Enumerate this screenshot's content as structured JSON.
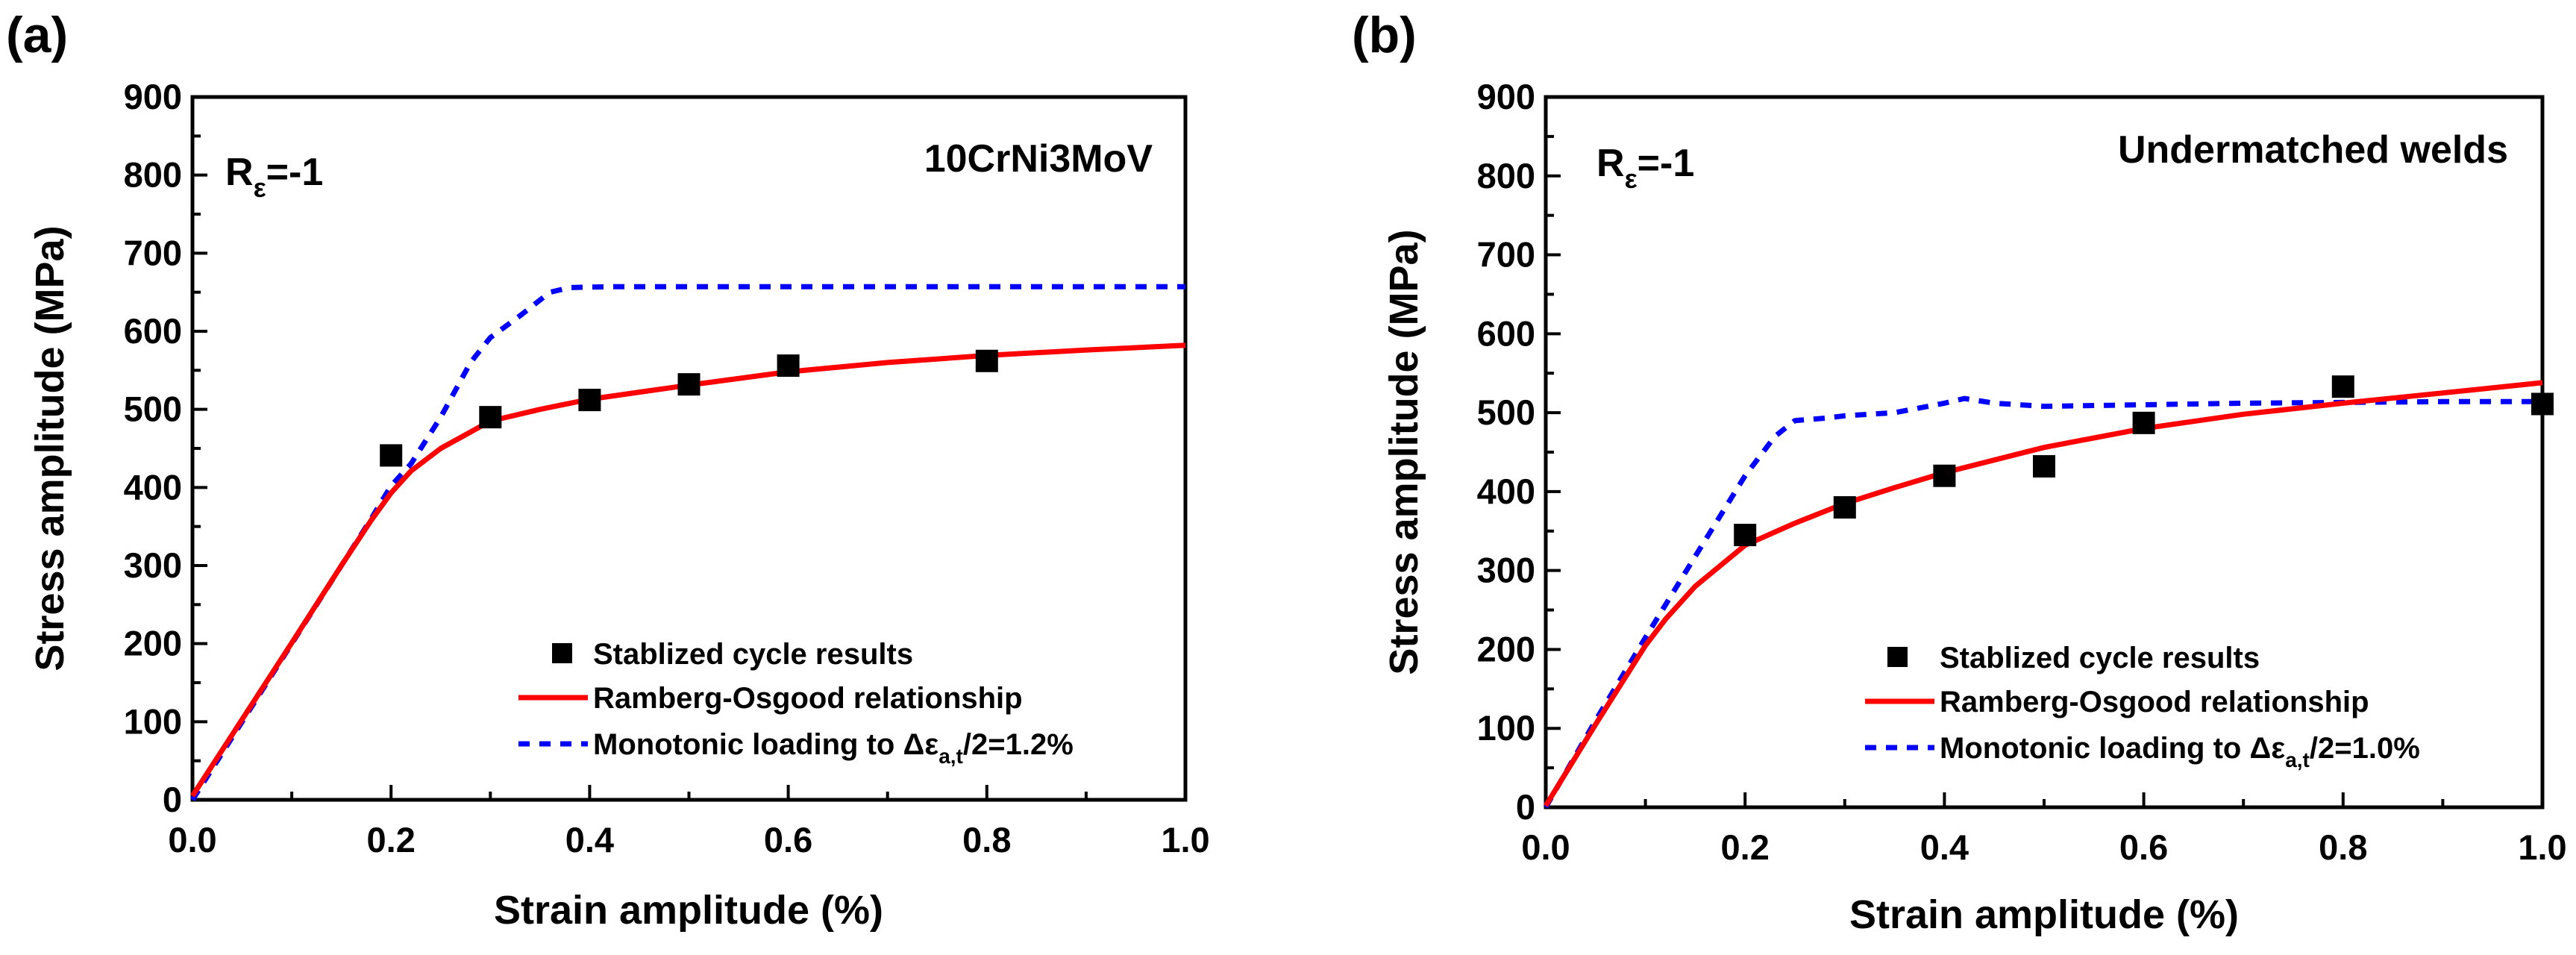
{
  "chart_data": [
    {
      "type": "scatter+line",
      "panel_label": "(a)",
      "xlabel": "Strain amplitude (%)",
      "ylabel": "Stress amplitude (MPa)",
      "xlim": [
        0.0,
        1.0
      ],
      "ylim": [
        0,
        900
      ],
      "xticks": [
        "0.0",
        "0.2",
        "0.4",
        "0.6",
        "0.8",
        "1.0"
      ],
      "yticks": [
        "0",
        "100",
        "200",
        "300",
        "400",
        "500",
        "600",
        "700",
        "800",
        "900"
      ],
      "annotation_left_main": "R",
      "annotation_left_sub": "ε",
      "annotation_left_rest": "=-1",
      "annotation_right": "10CrNi3MoV",
      "legend": [
        {
          "text": "Stablized cycle results"
        },
        {
          "text": "Ramberg-Osgood relationship"
        },
        {
          "text": "Monotonic loading to Δε",
          "sub": "a,t",
          "rest": "/2=1.2%"
        }
      ],
      "series": [
        {
          "name": "Stablized cycle results",
          "kind": "scatter",
          "color": "#000000",
          "x": [
            0.2,
            0.3,
            0.4,
            0.5,
            0.6,
            0.8
          ],
          "y": [
            441,
            490,
            512,
            532,
            556,
            562
          ]
        },
        {
          "name": "Ramberg-Osgood relationship",
          "kind": "line",
          "color": "#ff0000",
          "x": [
            0.0,
            0.05,
            0.1,
            0.15,
            0.18,
            0.2,
            0.22,
            0.25,
            0.3,
            0.35,
            0.4,
            0.5,
            0.6,
            0.7,
            0.8,
            0.9,
            1.0
          ],
          "y": [
            5,
            103,
            201,
            300,
            358,
            393,
            421,
            450,
            485,
            500,
            513,
            531,
            548,
            560,
            569,
            576,
            582
          ]
        },
        {
          "name": "Monotonic loading",
          "kind": "dashed",
          "color": "#0000ff",
          "x": [
            0.0,
            0.1,
            0.18,
            0.2,
            0.22,
            0.25,
            0.28,
            0.3,
            0.33,
            0.36,
            0.38,
            0.42,
            0.5,
            0.6,
            0.8,
            1.0
          ],
          "y": [
            0,
            200,
            360,
            402,
            430,
            490,
            560,
            592,
            620,
            650,
            656,
            657,
            657,
            657,
            657,
            657
          ]
        }
      ]
    },
    {
      "type": "scatter+line",
      "panel_label": "(b)",
      "xlabel": "Strain amplitude (%)",
      "ylabel": "Stress amplitude (MPa)",
      "xlim": [
        0.0,
        1.0
      ],
      "ylim": [
        0,
        900
      ],
      "xticks": [
        "0.0",
        "0.2",
        "0.4",
        "0.6",
        "0.8",
        "1.0"
      ],
      "yticks": [
        "0",
        "100",
        "200",
        "300",
        "400",
        "500",
        "600",
        "700",
        "800",
        "900"
      ],
      "annotation_left_main": "R",
      "annotation_left_sub": "ε",
      "annotation_left_rest": "=-1",
      "annotation_right": "Undermatched welds",
      "legend": [
        {
          "text": "Stablized cycle results"
        },
        {
          "text": "Ramberg-Osgood relationship"
        },
        {
          "text": "Monotonic loading to Δε",
          "sub": "a,t",
          "rest": "/2=1.0%"
        }
      ],
      "series": [
        {
          "name": "Stablized cycle results",
          "kind": "scatter",
          "color": "#000000",
          "x": [
            0.2,
            0.3,
            0.4,
            0.5,
            0.6,
            0.8,
            1.0
          ],
          "y": [
            345,
            380,
            420,
            432,
            487,
            533,
            511
          ]
        },
        {
          "name": "Ramberg-Osgood relationship",
          "kind": "line",
          "color": "#ff0000",
          "x": [
            0.0,
            0.05,
            0.1,
            0.12,
            0.15,
            0.2,
            0.25,
            0.3,
            0.35,
            0.4,
            0.5,
            0.6,
            0.7,
            0.8,
            0.9,
            1.0
          ],
          "y": [
            2,
            105,
            205,
            238,
            280,
            332,
            360,
            385,
            405,
            424,
            456,
            480,
            498,
            512,
            525,
            538
          ]
        },
        {
          "name": "Monotonic loading",
          "kind": "dashed",
          "color": "#0000ff",
          "x": [
            0.0,
            0.05,
            0.1,
            0.15,
            0.2,
            0.23,
            0.25,
            0.28,
            0.3,
            0.35,
            0.4,
            0.42,
            0.45,
            0.5,
            0.6,
            0.7,
            0.8,
            0.9,
            1.0
          ],
          "y": [
            0,
            110,
            215,
            318,
            420,
            470,
            490,
            493,
            496,
            500,
            512,
            518,
            512,
            508,
            510,
            512,
            513,
            514,
            514
          ]
        }
      ]
    }
  ]
}
